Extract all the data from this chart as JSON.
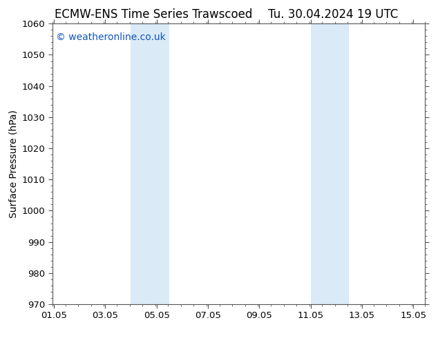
{
  "title": "ECMW-ENS Time Series Trawscoed      Tu. 30.04.2024 19 UTC",
  "title_left": "ECMW-ENS Time Series Trawscoed",
  "title_right": "Tu. 30.04.2024 19 UTC",
  "ylabel": "Surface Pressure (hPa)",
  "xlim": [
    1.0,
    15.5
  ],
  "ylim": [
    970,
    1060
  ],
  "yticks": [
    970,
    980,
    990,
    1000,
    1010,
    1020,
    1030,
    1040,
    1050,
    1060
  ],
  "xticks": [
    1.05,
    3.05,
    5.05,
    7.05,
    9.05,
    11.05,
    13.05,
    15.05
  ],
  "xticklabels": [
    "01.05",
    "03.05",
    "05.05",
    "07.05",
    "09.05",
    "11.05",
    "13.05",
    "15.05"
  ],
  "shaded_bands": [
    {
      "xmin": 4.05,
      "xmax": 5.55
    },
    {
      "xmin": 11.05,
      "xmax": 12.55
    }
  ],
  "band_color": "#daeaf7",
  "watermark": "© weatheronline.co.uk",
  "watermark_color": "#1155bb",
  "background_color": "#ffffff",
  "title_fontsize": 12,
  "axis_fontsize": 10,
  "tick_fontsize": 9.5,
  "watermark_fontsize": 10
}
